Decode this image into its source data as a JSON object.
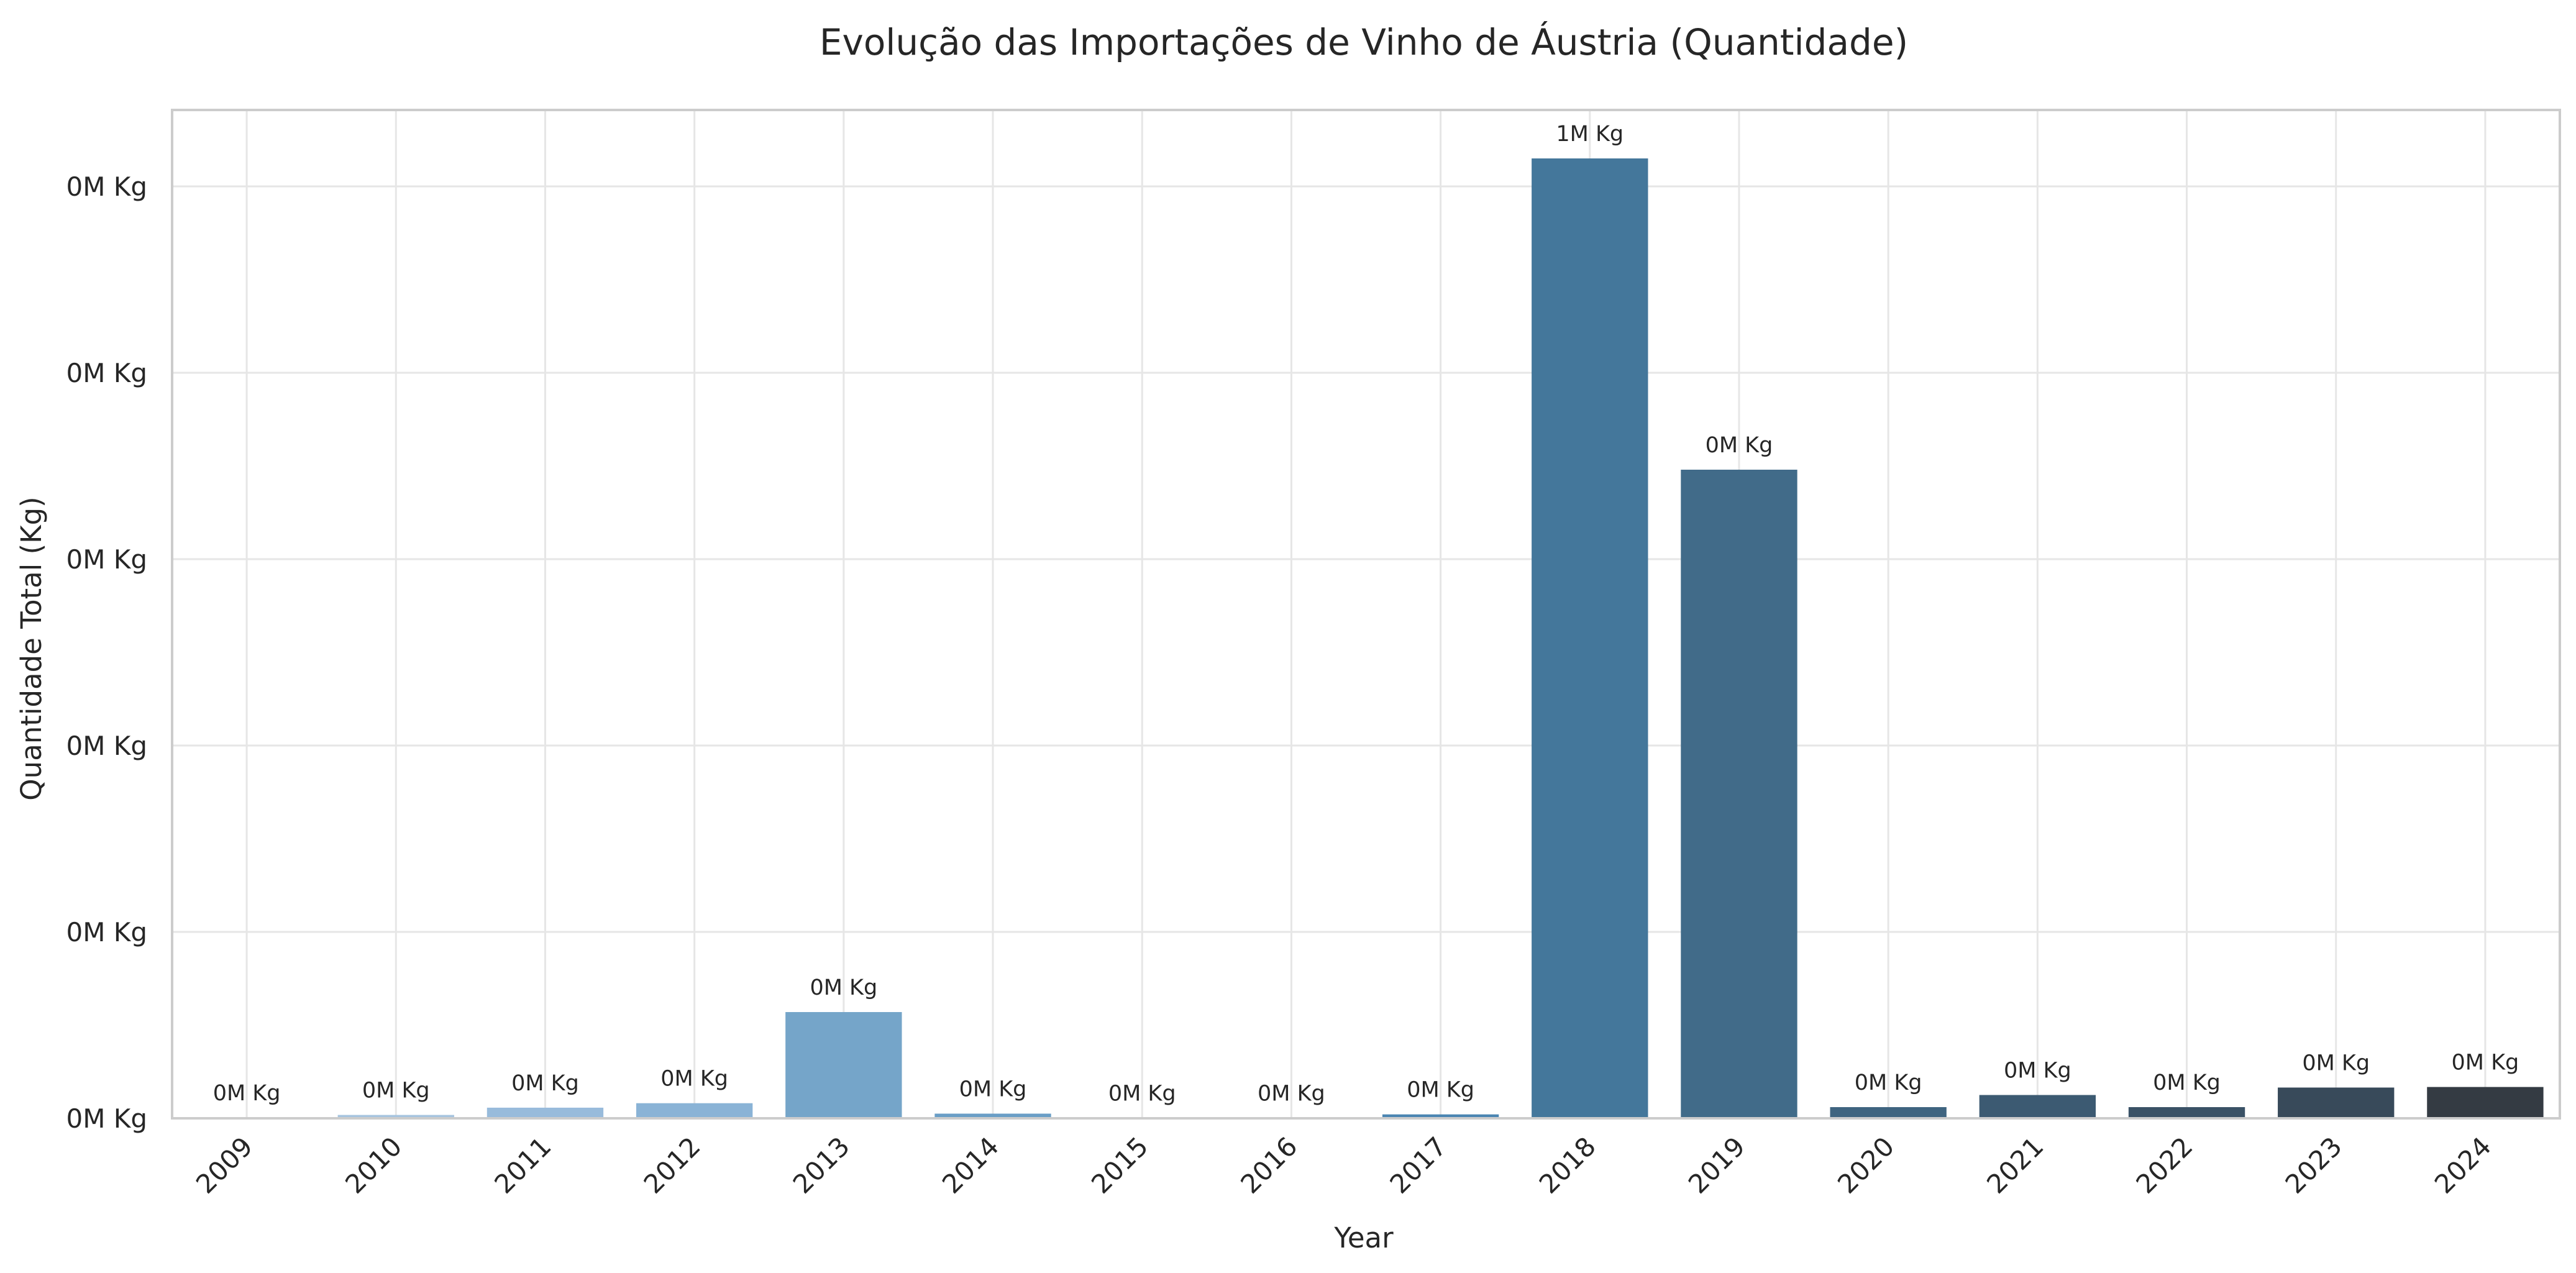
{
  "chart_data": {
    "type": "bar",
    "title": "Evolução das Importações de Vinho de Áustria (Quantidade)",
    "xlabel": "Year",
    "ylabel": "Quantidade Total (Kg)",
    "categories": [
      "2009",
      "2010",
      "2011",
      "2012",
      "2013",
      "2014",
      "2015",
      "2016",
      "2017",
      "2018",
      "2019",
      "2020",
      "2021",
      "2022",
      "2023",
      "2024"
    ],
    "values": [
      400,
      1800,
      5700,
      8100,
      57000,
      2500,
      200,
      150,
      2100,
      515000,
      348000,
      6000,
      12500,
      6000,
      16500,
      16800
    ],
    "data_labels": [
      "0M Kg",
      "0M Kg",
      "0M Kg",
      "0M Kg",
      "0M Kg",
      "0M Kg",
      "0M Kg",
      "0M Kg",
      "0M Kg",
      "1M Kg",
      "0M Kg",
      "0M Kg",
      "0M Kg",
      "0M Kg",
      "0M Kg",
      "0M Kg"
    ],
    "ylim": [
      0,
      541000
    ],
    "yticks": [
      0,
      100000,
      200000,
      300000,
      400000,
      500000
    ],
    "ytick_labels": [
      "0M Kg",
      "0M Kg",
      "0M Kg",
      "0M Kg",
      "0M Kg",
      "0M Kg"
    ],
    "grid": true,
    "legend": "none",
    "colors": [
      "#b3cde3",
      "#a6c4df",
      "#98bbdb",
      "#8ab3d6",
      "#75a5c9",
      "#6a9ec6",
      "#5e96c0",
      "#548eb9",
      "#4b86b2",
      "#44779b",
      "#416b89",
      "#3f6480",
      "#3c5a72",
      "#3a5266",
      "#384a5a",
      "#343b43"
    ]
  }
}
